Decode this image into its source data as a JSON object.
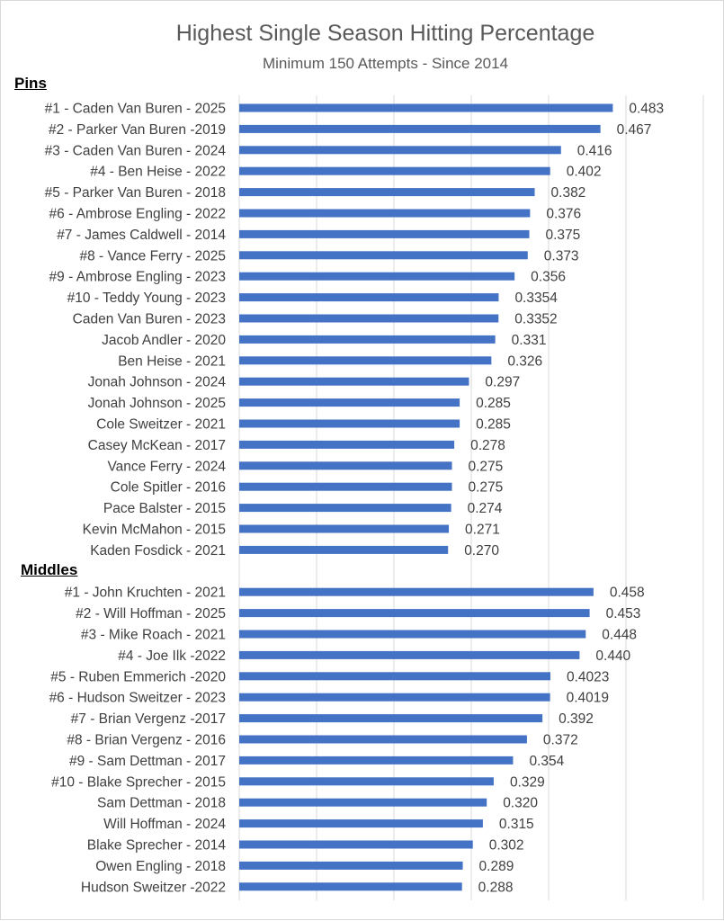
{
  "chart_data": {
    "type": "bar",
    "orientation": "horizontal",
    "title": "Highest Single Season Hitting Percentage",
    "subtitle": "Minimum 150 Attempts  - Since 2014",
    "xlim": [
      0,
      0.6
    ],
    "grid": true,
    "bar_color": "#4472C4",
    "groups": [
      {
        "name": "Pins",
        "categories": [
          "#1 - Caden Van Buren - 2025",
          "#2 - Parker Van Buren -2019",
          "#3 - Caden Van Buren - 2024",
          "#4 - Ben Heise - 2022",
          "#5 - Parker Van Buren - 2018",
          "#6 - Ambrose Engling - 2022",
          "#7 - James Caldwell - 2014",
          "#8 - Vance Ferry - 2025",
          "#9 - Ambrose Engling - 2023",
          "#10 - Teddy Young - 2023",
          "Caden Van Buren - 2023",
          "Jacob Andler - 2020",
          "Ben Heise - 2021",
          "Jonah Johnson - 2024",
          "Jonah Johnson - 2025",
          "Cole Sweitzer - 2021",
          "Casey McKean - 2017",
          "Vance Ferry - 2024",
          "Cole Spitler - 2016",
          "Pace Balster - 2015",
          "Kevin McMahon - 2015",
          "Kaden Fosdick - 2021"
        ],
        "values": [
          0.483,
          0.467,
          0.416,
          0.402,
          0.382,
          0.376,
          0.375,
          0.373,
          0.356,
          0.3354,
          0.3352,
          0.331,
          0.326,
          0.297,
          0.285,
          0.285,
          0.278,
          0.275,
          0.275,
          0.274,
          0.271,
          0.27
        ],
        "labels": [
          "0.483",
          "0.467",
          "0.416",
          "0.402",
          "0.382",
          "0.376",
          "0.375",
          "0.373",
          "0.356",
          "0.3354",
          "0.3352",
          "0.331",
          "0.326",
          "0.297",
          "0.285",
          "0.285",
          "0.278",
          "0.275",
          "0.275",
          "0.274",
          "0.271",
          "0.270"
        ]
      },
      {
        "name": "Middles",
        "categories": [
          "#1 - John Kruchten - 2021",
          "#2 - Will Hoffman - 2025",
          "#3 - Mike Roach - 2021",
          "#4 - Joe Ilk -2022",
          "#5 - Ruben Emmerich -2020",
          "#6 - Hudson Sweitzer - 2023",
          "#7 - Brian Vergenz -2017",
          "#8 - Brian Vergenz - 2016",
          "#9 - Sam Dettman - 2017",
          "#10 - Blake Sprecher - 2015",
          "Sam Dettman - 2018",
          "Will Hoffman - 2024",
          "Blake Sprecher - 2014",
          "Owen Engling - 2018",
          "Hudson Sweitzer -2022"
        ],
        "values": [
          0.458,
          0.453,
          0.448,
          0.44,
          0.4023,
          0.4019,
          0.392,
          0.372,
          0.354,
          0.329,
          0.32,
          0.315,
          0.302,
          0.289,
          0.288
        ],
        "labels": [
          "0.458",
          "0.453",
          "0.448",
          "0.440",
          "0.4023",
          "0.4019",
          "0.392",
          "0.372",
          "0.354",
          "0.329",
          "0.320",
          "0.315",
          "0.302",
          "0.289",
          "0.288"
        ]
      }
    ]
  }
}
